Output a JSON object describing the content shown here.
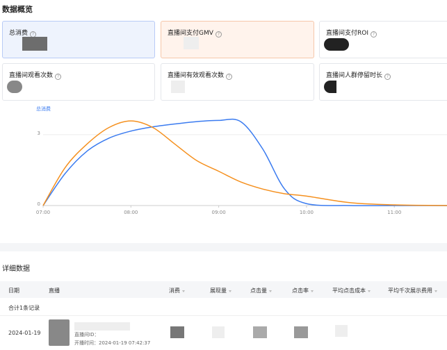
{
  "header": {
    "title": "数据概览"
  },
  "cards": [
    {
      "label": "总消费"
    },
    {
      "label": "直播间支付GMV"
    },
    {
      "label": "直播间支付ROI"
    },
    {
      "label": "直播间观看次数"
    },
    {
      "label": "直播间有效观看次数"
    },
    {
      "label": "直播间人群停留时长"
    }
  ],
  "chart_data": {
    "type": "line",
    "x": [
      7,
      7.25,
      7.5,
      7.75,
      8,
      8.25,
      8.5,
      8.75,
      9,
      9.25,
      9.5,
      9.75,
      10,
      10.5,
      11,
      11.6
    ],
    "xlim": [
      7,
      11.6
    ],
    "xticks": [
      {
        "value": 7,
        "label": "07:00"
      },
      {
        "value": 8,
        "label": "08:00"
      },
      {
        "value": 9,
        "label": "09:00"
      },
      {
        "value": 10,
        "label": "10:00"
      },
      {
        "value": 11,
        "label": "11:00"
      }
    ],
    "ylim": [
      0,
      3.7
    ],
    "yticks": [
      0,
      3
    ],
    "grid": true,
    "series": [
      {
        "name": "总消费",
        "color": "#3a7bf0",
        "values": [
          0,
          1.35,
          2.3,
          2.85,
          3.15,
          3.33,
          3.45,
          3.55,
          3.6,
          3.55,
          2.4,
          0.7,
          0.08,
          0,
          0,
          0
        ]
      },
      {
        "color": "#f5901e",
        "values": [
          0,
          1.6,
          2.6,
          3.3,
          3.58,
          3.3,
          2.6,
          1.9,
          1.45,
          1.0,
          0.7,
          0.5,
          0.4,
          0.12,
          0.03,
          0
        ]
      }
    ]
  },
  "table": {
    "title": "详细数据",
    "columns": [
      "日期",
      "直播",
      "消费",
      "展现量",
      "点击量",
      "点击率",
      "平均点击成本",
      "平均千次展示费用"
    ],
    "summary": "合计1条记录",
    "rows": [
      {
        "date": "2024-01-19",
        "live_id_label": "直播间ID：",
        "start_label": "开播时间：",
        "start_time": "2024-01-19 07:42:37"
      }
    ]
  }
}
